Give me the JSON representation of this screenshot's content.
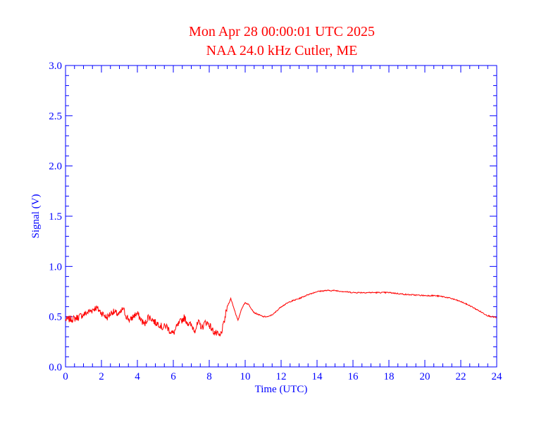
{
  "colors": {
    "axes": "#0000ff",
    "series": "#ff0000",
    "title": "#ff0000",
    "background": "#ffffff"
  },
  "chart_data": {
    "type": "line",
    "title": "Mon Apr 28 00:00:01 UTC 2025",
    "subtitle": "NAA 24.0 kHz Cutler, ME",
    "xlabel": "Time (UTC)",
    "ylabel": "Signal (V)",
    "xlim": [
      0,
      24
    ],
    "ylim": [
      0,
      3.0
    ],
    "xticks": [
      "0",
      "2",
      "4",
      "6",
      "8",
      "10",
      "12",
      "14",
      "16",
      "18",
      "20",
      "22",
      "24"
    ],
    "yticks": [
      "0.0",
      "0.5",
      "1.0",
      "1.5",
      "2.0",
      "2.5",
      "3.0"
    ],
    "grid": false,
    "series": [
      {
        "x": [
          0,
          0.5,
          1.0,
          1.5,
          1.7,
          2.0,
          2.3,
          2.6,
          3.0,
          3.2,
          3.4,
          3.6,
          3.8,
          4.0,
          4.2,
          4.4,
          4.6,
          4.8,
          5.0,
          5.2,
          5.4,
          5.6,
          5.8,
          6.0,
          6.2,
          6.4,
          6.6,
          6.8,
          7.0,
          7.2,
          7.4,
          7.6,
          7.8,
          8.0,
          8.2,
          8.4,
          8.6,
          8.8,
          9.0,
          9.2,
          9.4,
          9.6,
          9.8,
          10.0,
          10.2,
          10.5,
          11.0,
          11.3,
          11.6,
          12.0,
          12.5,
          13.0,
          13.5,
          14.0,
          14.5,
          15.0,
          15.5,
          16.0,
          17.0,
          18.0,
          19.0,
          20.0,
          20.5,
          21.0,
          21.5,
          22.0,
          22.5,
          23.0,
          23.5,
          24.0
        ],
        "y": [
          0.47,
          0.48,
          0.52,
          0.57,
          0.59,
          0.54,
          0.49,
          0.55,
          0.52,
          0.58,
          0.5,
          0.46,
          0.51,
          0.53,
          0.47,
          0.42,
          0.5,
          0.48,
          0.44,
          0.43,
          0.39,
          0.41,
          0.36,
          0.33,
          0.4,
          0.45,
          0.49,
          0.44,
          0.41,
          0.37,
          0.44,
          0.39,
          0.45,
          0.42,
          0.36,
          0.33,
          0.3,
          0.42,
          0.6,
          0.68,
          0.57,
          0.46,
          0.58,
          0.64,
          0.62,
          0.54,
          0.5,
          0.5,
          0.53,
          0.6,
          0.65,
          0.68,
          0.72,
          0.75,
          0.76,
          0.76,
          0.75,
          0.74,
          0.74,
          0.74,
          0.72,
          0.71,
          0.71,
          0.7,
          0.68,
          0.65,
          0.61,
          0.56,
          0.51,
          0.49
        ]
      }
    ]
  }
}
